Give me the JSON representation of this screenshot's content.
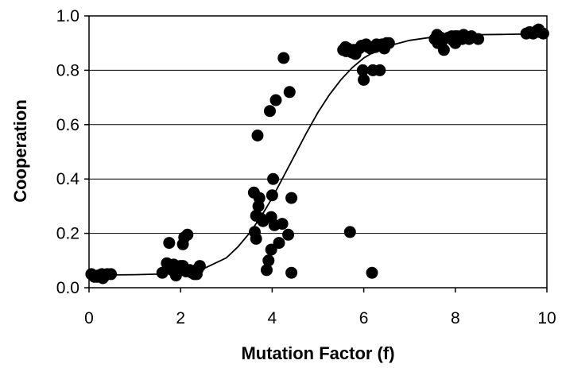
{
  "chart_data": {
    "type": "scatter",
    "title": "",
    "xlabel": "Mutation Factor (f)",
    "ylabel": "Cooperation",
    "xlim": [
      0,
      10
    ],
    "ylim": [
      0,
      1
    ],
    "xticks": [
      "0",
      "2",
      "4",
      "6",
      "8",
      "10"
    ],
    "yticks": [
      "0.0",
      "0.2",
      "0.4",
      "0.6",
      "0.8",
      "1.0"
    ],
    "grid": "horizontal",
    "legend": "none",
    "colors": {
      "points": "#000000",
      "curve": "#000000",
      "grid": "#000000",
      "background": "#ffffff"
    },
    "series": [
      {
        "type": "scatter",
        "x": [
          0.05,
          0.12,
          0.2,
          0.28,
          0.35,
          0.4,
          0.48,
          0.3,
          0.18,
          1.6,
          1.7,
          1.78,
          1.85,
          1.95,
          2.05,
          2.12,
          2.25,
          2.35,
          2.42,
          1.9,
          2.0,
          1.75,
          2.08,
          2.15,
          2.3,
          1.82,
          2.2,
          2.38,
          2.05,
          3.62,
          3.65,
          3.7,
          3.75,
          3.8,
          3.6,
          3.65,
          3.72,
          3.68,
          3.88,
          3.92,
          3.98,
          4.05,
          4.15,
          4.22,
          4.35,
          4.42,
          3.95,
          4.0,
          4.02,
          4.08,
          4.25,
          4.38,
          4.42,
          3.98,
          5.55,
          5.6,
          5.65,
          5.7,
          5.75,
          5.82,
          5.9,
          5.95,
          6.05,
          6.1,
          6.15,
          6.25,
          6.32,
          6.4,
          6.45,
          6.5,
          6.55,
          5.62,
          5.78,
          6.0,
          6.2,
          6.35,
          5.98,
          6.28,
          5.7,
          6.18,
          7.55,
          7.6,
          7.68,
          7.75,
          7.85,
          7.92,
          8.0,
          8.1,
          8.18,
          8.25,
          8.35,
          8.5,
          7.62,
          7.95,
          8.05,
          8.3,
          7.7,
          8.0,
          8.15,
          9.55,
          9.62,
          9.7,
          9.78,
          9.85,
          9.92,
          9.82,
          9.75
        ],
        "y": [
          0.05,
          0.04,
          0.045,
          0.05,
          0.045,
          0.05,
          0.05,
          0.035,
          0.04,
          0.055,
          0.09,
          0.07,
          0.085,
          0.065,
          0.08,
          0.06,
          0.055,
          0.05,
          0.08,
          0.045,
          0.08,
          0.165,
          0.185,
          0.195,
          0.05,
          0.065,
          0.065,
          0.07,
          0.16,
          0.205,
          0.265,
          0.3,
          0.255,
          0.245,
          0.35,
          0.18,
          0.33,
          0.56,
          0.065,
          0.1,
          0.14,
          0.23,
          0.165,
          0.235,
          0.195,
          0.055,
          0.65,
          0.34,
          0.4,
          0.69,
          0.845,
          0.72,
          0.33,
          0.26,
          0.875,
          0.885,
          0.88,
          0.87,
          0.865,
          0.86,
          0.88,
          0.89,
          0.895,
          0.885,
          0.88,
          0.885,
          0.89,
          0.895,
          0.88,
          0.9,
          0.9,
          0.87,
          0.875,
          0.765,
          0.8,
          0.8,
          0.8,
          0.895,
          0.205,
          0.055,
          0.915,
          0.93,
          0.92,
          0.875,
          0.92,
          0.925,
          0.925,
          0.915,
          0.93,
          0.92,
          0.925,
          0.915,
          0.9,
          0.91,
          0.925,
          0.915,
          0.905,
          0.9,
          0.915,
          0.935,
          0.94,
          0.935,
          0.945,
          0.94,
          0.935,
          0.95,
          0.94
        ]
      },
      {
        "type": "line",
        "x": [
          0,
          0.5,
          1,
          1.5,
          2,
          2.5,
          3,
          3.25,
          3.5,
          3.75,
          4,
          4.25,
          4.5,
          4.75,
          5,
          5.25,
          5.5,
          5.75,
          6,
          6.25,
          6.5,
          7,
          7.5,
          8,
          8.5,
          9,
          9.5,
          10
        ],
        "y": [
          0.047,
          0.047,
          0.048,
          0.05,
          0.055,
          0.07,
          0.11,
          0.15,
          0.2,
          0.26,
          0.33,
          0.41,
          0.49,
          0.57,
          0.645,
          0.71,
          0.765,
          0.81,
          0.845,
          0.87,
          0.888,
          0.91,
          0.922,
          0.928,
          0.931,
          0.932,
          0.933,
          0.933
        ]
      }
    ]
  }
}
